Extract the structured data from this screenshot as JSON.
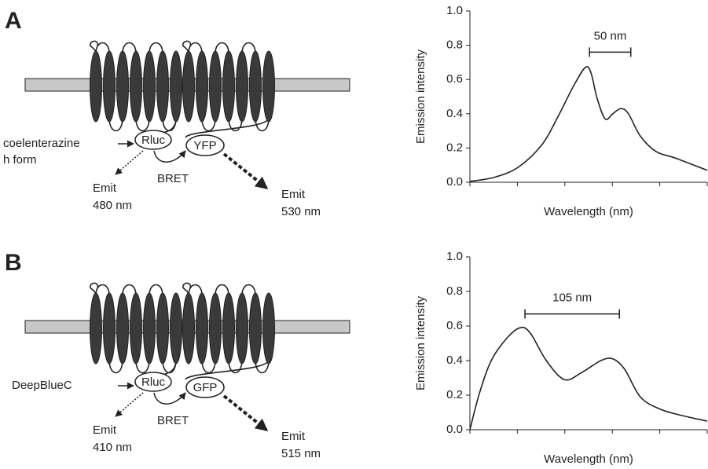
{
  "diagrams": [
    {
      "label": "A",
      "substrate": [
        "coelenterazine",
        "h form"
      ],
      "donor": "Rluc",
      "acceptor": "YFP",
      "transfer": "BRET",
      "donor_emission": [
        "Emit",
        "480 nm"
      ],
      "acceptor_emission": [
        "Emit",
        "530 nm"
      ]
    },
    {
      "label": "B",
      "substrate": [
        "DeepBlueC"
      ],
      "donor": "Rluc",
      "acceptor": "GFP",
      "transfer": "BRET",
      "donor_emission": [
        "Emit",
        "410 nm"
      ],
      "acceptor_emission": [
        "Emit",
        "515 nm"
      ]
    }
  ],
  "chart_data": [
    {
      "type": "line",
      "ylabel": "Emission intensity",
      "xlabel": "Wavelength (nm)",
      "color": "#222222",
      "x": [
        0,
        0.53,
        1.03,
        1.52,
        1.85,
        2.18,
        2.43,
        2.55,
        2.68,
        2.85,
        3.01,
        3.18,
        3.34,
        3.59,
        3.92,
        4.34,
        5
      ],
      "values": [
        0.005,
        0.03,
        0.09,
        0.22,
        0.38,
        0.56,
        0.67,
        0.64,
        0.49,
        0.37,
        0.4,
        0.43,
        0.4,
        0.27,
        0.18,
        0.14,
        0.07
      ],
      "xlim": [
        0,
        5
      ],
      "xticks": [
        0,
        1,
        2,
        3,
        4,
        5
      ],
      "ylim": [
        0,
        1
      ],
      "yticks": [
        {
          "value": 0,
          "label": "0.0"
        },
        {
          "value": 0.2,
          "label": "0.2"
        },
        {
          "value": 0.4,
          "label": "0.4"
        },
        {
          "value": 0.6,
          "label": "0.6"
        },
        {
          "value": 0.8,
          "label": "0.8"
        },
        {
          "value": 1,
          "label": "1.0"
        }
      ],
      "annotations": [
        {
          "text": "50 nm",
          "x": [
            2.52,
            3.39
          ],
          "y": 0.76
        }
      ]
    },
    {
      "type": "line",
      "ylabel": "Emission intensity",
      "xlabel": "Wavelength (nm)",
      "color": "#222222",
      "x": [
        0,
        0.2,
        0.45,
        0.78,
        1.06,
        1.27,
        1.61,
        1.99,
        2.35,
        2.76,
        3.01,
        3.26,
        3.59,
        4.0,
        4.5,
        5
      ],
      "values": [
        0,
        0.21,
        0.4,
        0.53,
        0.59,
        0.56,
        0.4,
        0.29,
        0.33,
        0.4,
        0.41,
        0.35,
        0.19,
        0.12,
        0.08,
        0.05
      ],
      "xlim": [
        0,
        5
      ],
      "xticks": [
        0,
        1,
        2,
        3,
        4,
        5
      ],
      "ylim": [
        0,
        1
      ],
      "yticks": [
        {
          "value": 0,
          "label": "0.0"
        },
        {
          "value": 0.2,
          "label": "0.2"
        },
        {
          "value": 0.4,
          "label": "0.4"
        },
        {
          "value": 0.6,
          "label": "0.6"
        },
        {
          "value": 0.8,
          "label": "0.8"
        },
        {
          "value": 1,
          "label": "1.0"
        }
      ],
      "annotations": [
        {
          "text": "105 nm",
          "x": [
            1.16,
            3.15
          ],
          "y": 0.67
        }
      ]
    }
  ]
}
